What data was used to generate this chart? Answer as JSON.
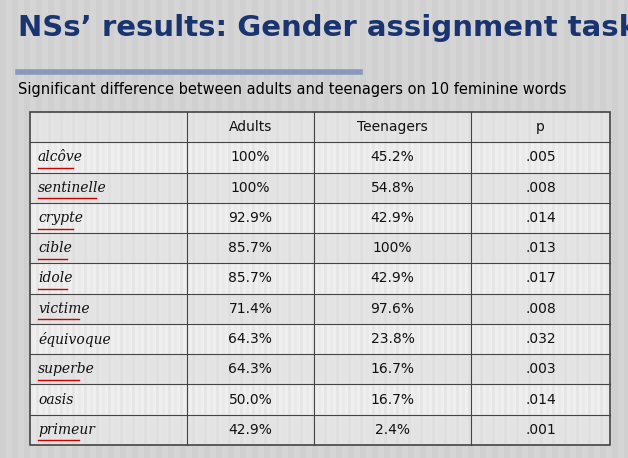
{
  "title": "NSs’ results: Gender assignment task",
  "subtitle": "Significant difference between adults and teenagers on 10 feminine words",
  "bg_color": "#d4d4d4",
  "title_color": "#1a3470",
  "subtitle_color": "#000000",
  "table_headers": [
    "",
    "Adults",
    "Teenagers",
    "p"
  ],
  "rows": [
    [
      "alcôve",
      "100%",
      "45.2%",
      ".005"
    ],
    [
      "sentinelle",
      "100%",
      "54.8%",
      ".008"
    ],
    [
      "crypte",
      "92.9%",
      "42.9%",
      ".014"
    ],
    [
      "cible",
      "85.7%",
      "100%",
      ".013"
    ],
    [
      "idole",
      "85.7%",
      "42.9%",
      ".017"
    ],
    [
      "victime",
      "71.4%",
      "97.6%",
      ".008"
    ],
    [
      "équivoque",
      "64.3%",
      "23.8%",
      ".032"
    ],
    [
      "superbe",
      "64.3%",
      "16.7%",
      ".003"
    ],
    [
      "oasis",
      "50.0%",
      "16.7%",
      ".014"
    ],
    [
      "primeur",
      "42.9%",
      "2.4%",
      ".001"
    ]
  ],
  "underlined_rows": [
    0,
    1,
    2,
    3,
    4,
    5,
    7,
    9
  ],
  "line_color": "#444444",
  "row_bg_light": "#e8e8e8",
  "row_bg_dark": "#d8d8d8",
  "stripe_color_light": "#e0e0e0",
  "stripe_color_dark": "#c8c8c8",
  "blue_line_color": "#8899bb",
  "header_sep_color": "#555555"
}
